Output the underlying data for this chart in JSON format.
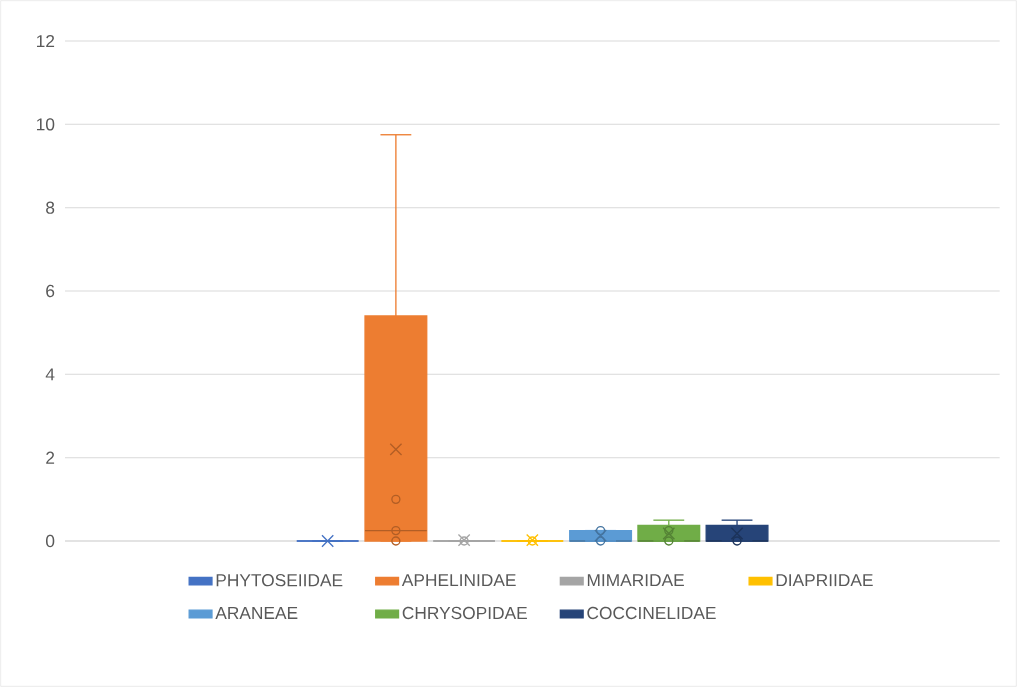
{
  "chart_data": {
    "type": "box",
    "categories": [
      null
    ],
    "series": [
      {
        "name": "PHYTOSEIIDAE",
        "color": "#4472c4",
        "boxes": [
          {
            "low": 0,
            "q1": 0,
            "median": 0,
            "q3": 0,
            "high": 0,
            "mean": 0
          }
        ]
      },
      {
        "name": "APHELINIDAE",
        "color": "#ed7d31",
        "boxes": [
          {
            "low": 0,
            "q1": 0,
            "median": 0.25,
            "q3": 5.4,
            "high": 9.75,
            "mean": 2.2,
            "outliers": [
              0,
              0.25,
              1
            ]
          }
        ]
      },
      {
        "name": "MIMARIDAE",
        "color": "#a5a5a5",
        "boxes": [
          {
            "low": 0,
            "q1": 0,
            "median": 0,
            "q3": 0,
            "high": 0,
            "mean": 0.02,
            "outliers": [
              0
            ]
          }
        ]
      },
      {
        "name": "DIAPRIIDAE",
        "color": "#ffc000",
        "boxes": [
          {
            "low": 0,
            "q1": 0,
            "median": 0,
            "q3": 0,
            "high": 0,
            "mean": 0.02,
            "outliers": [
              0
            ]
          }
        ]
      },
      {
        "name": "ARANEAE",
        "color": "#5b9bd5",
        "boxes": [
          {
            "low": 0,
            "q1": 0,
            "median": 0,
            "q3": 0.25,
            "high": 0.25,
            "mean": 0.13,
            "outliers": [
              0,
              0.25
            ]
          }
        ]
      },
      {
        "name": "CHRYSOPIDAE",
        "color": "#70ad47",
        "boxes": [
          {
            "low": 0,
            "q1": 0,
            "median": 0,
            "q3": 0.375,
            "high": 0.5,
            "mean": 0.18,
            "outliers": [
              0,
              0.25
            ]
          }
        ]
      },
      {
        "name": "COCCINELIDAE",
        "color": "#264478",
        "boxes": [
          {
            "low": 0,
            "q1": 0,
            "median": 0,
            "q3": 0.375,
            "high": 0.5,
            "mean": 0.18,
            "outliers": [
              0
            ]
          }
        ]
      }
    ],
    "ylim": [
      0,
      12
    ],
    "yticks": [
      0,
      2,
      4,
      6,
      8,
      10,
      12
    ],
    "grid": "y",
    "legend": "bottom"
  }
}
